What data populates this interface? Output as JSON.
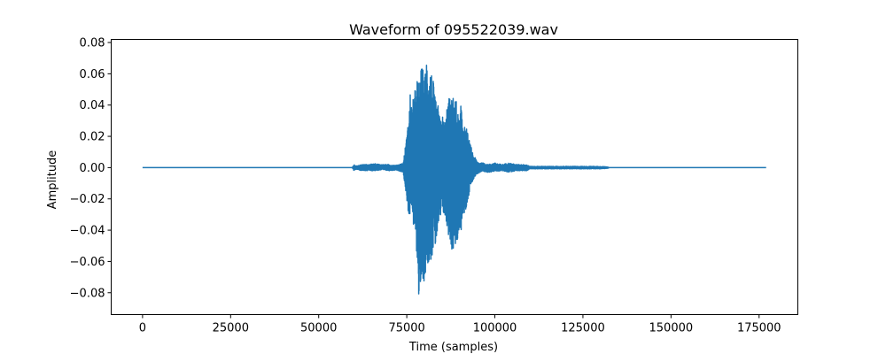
{
  "chart_data": {
    "type": "line",
    "title": "Waveform of 095522039.wav",
    "xlabel": "Time (samples)",
    "ylabel": "Amplitude",
    "xlim": [
      -8900,
      186000
    ],
    "ylim": [
      -0.094,
      0.082
    ],
    "xticks": [
      0,
      25000,
      50000,
      75000,
      100000,
      125000,
      150000,
      175000
    ],
    "yticks": [
      -0.08,
      -0.06,
      -0.04,
      -0.02,
      0.0,
      0.02,
      0.04,
      0.06,
      0.08
    ],
    "xtick_labels": [
      "0",
      "25000",
      "50000",
      "75000",
      "100000",
      "125000",
      "150000",
      "175000"
    ],
    "ytick_labels": [
      "−0.08",
      "−0.06",
      "−0.04",
      "−0.02",
      "0.00",
      "0.02",
      "0.04",
      "0.06",
      "0.08"
    ],
    "grid": false,
    "color": "#1f77b4",
    "series": [
      {
        "x": [
          0,
          59500,
          60000,
          61000,
          62000,
          64000,
          66000,
          68000,
          70000,
          72000,
          74000,
          75500,
          76000,
          76500,
          77000,
          77500,
          78000,
          78500,
          79000,
          79500,
          80000,
          80500,
          81000,
          81500,
          82000,
          82500,
          83000,
          83500,
          84000,
          84500,
          85000,
          85500,
          86000,
          86500,
          87000,
          87500,
          88000,
          88500,
          89000,
          89500,
          90000,
          90500,
          91000,
          91500,
          92000,
          92500,
          93000,
          94000,
          95000,
          96000,
          97000,
          98000,
          100000,
          102000,
          104000,
          106000,
          108000,
          109000,
          110000,
          115000,
          120000,
          125000,
          130000,
          132000,
          132500,
          177000
        ],
        "y_env_pos": [
          0,
          0,
          0.002,
          0.001,
          0.002,
          0.002,
          0.0025,
          0.002,
          0.002,
          0.0015,
          0.003,
          0.03,
          0.05,
          0.035,
          0.05,
          0.05,
          0.06,
          0.052,
          0.063,
          0.065,
          0.055,
          0.073,
          0.07,
          0.065,
          0.062,
          0.056,
          0.045,
          0.04,
          0.04,
          0.03,
          0.035,
          0.03,
          0.03,
          0.042,
          0.045,
          0.043,
          0.045,
          0.046,
          0.044,
          0.035,
          0.03,
          0.044,
          0.033,
          0.025,
          0.025,
          0.02,
          0.015,
          0.008,
          0.004,
          0.003,
          0.003,
          0.002,
          0.003,
          0.002,
          0.003,
          0.002,
          0.002,
          0.002,
          0.0008,
          0.0008,
          0.0008,
          0.0008,
          0.0008,
          0.0005,
          0,
          0
        ],
        "y_env_neg": [
          0,
          0,
          -0.002,
          -0.001,
          -0.002,
          -0.002,
          -0.002,
          -0.0015,
          -0.002,
          -0.0015,
          -0.003,
          -0.03,
          -0.032,
          -0.025,
          -0.045,
          -0.04,
          -0.065,
          -0.087,
          -0.08,
          -0.07,
          -0.075,
          -0.063,
          -0.062,
          -0.058,
          -0.06,
          -0.052,
          -0.055,
          -0.045,
          -0.04,
          -0.035,
          -0.03,
          -0.03,
          -0.035,
          -0.04,
          -0.045,
          -0.05,
          -0.055,
          -0.052,
          -0.048,
          -0.05,
          -0.045,
          -0.04,
          -0.032,
          -0.03,
          -0.025,
          -0.02,
          -0.012,
          -0.007,
          -0.004,
          -0.003,
          -0.003,
          -0.003,
          -0.0025,
          -0.002,
          -0.003,
          -0.002,
          -0.002,
          -0.002,
          -0.0008,
          -0.0008,
          -0.0008,
          -0.0008,
          -0.0008,
          -0.0005,
          0,
          0
        ]
      }
    ]
  }
}
